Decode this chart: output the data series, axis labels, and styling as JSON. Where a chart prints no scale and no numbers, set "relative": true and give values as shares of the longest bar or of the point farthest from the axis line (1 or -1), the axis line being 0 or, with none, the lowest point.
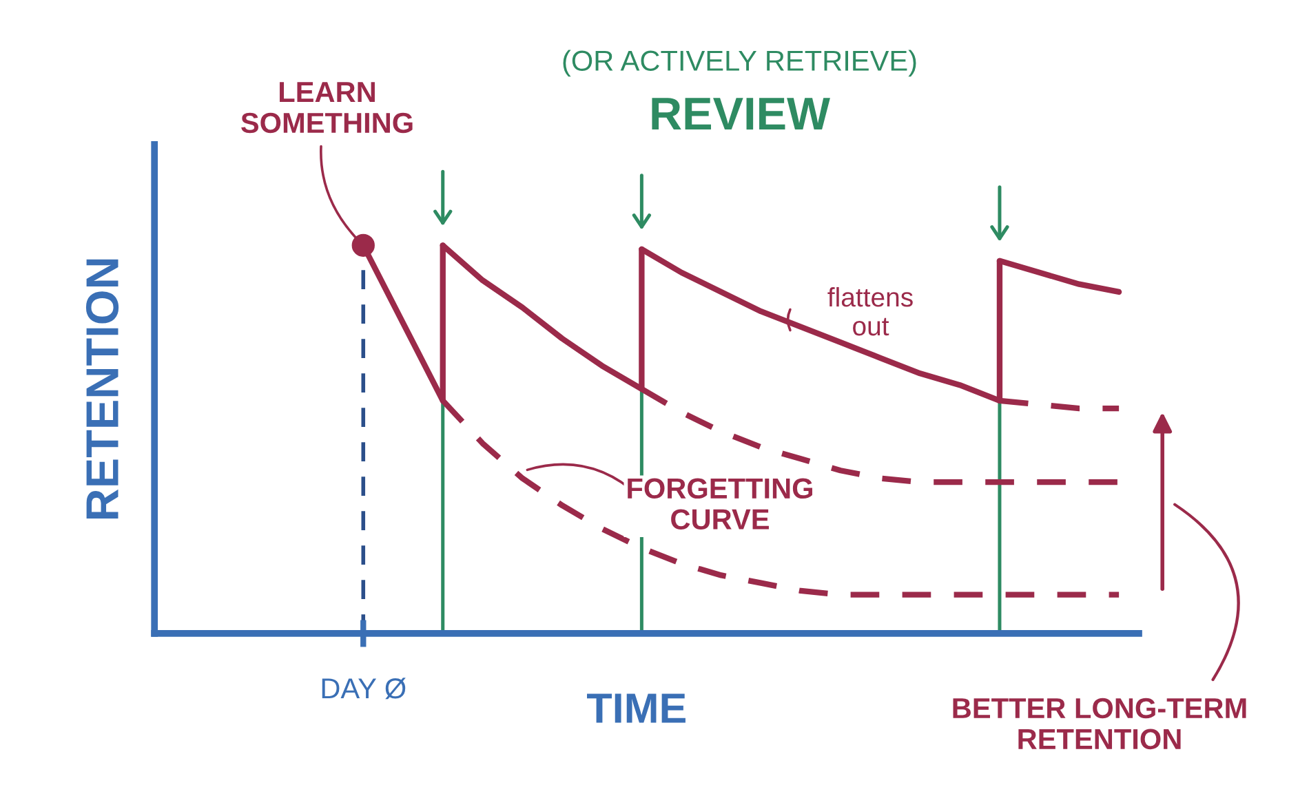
{
  "chart_data": {
    "type": "line",
    "relative": true,
    "title": "REVIEW",
    "subtitle": "(OR ACTIVELY RETRIEVE)",
    "xlabel": "TIME",
    "ylabel": "RETENTION",
    "categories": [
      null,
      null,
      null,
      null,
      null,
      null,
      null,
      null,
      null,
      null,
      null,
      null,
      null,
      null,
      null,
      null,
      null,
      null,
      null,
      null,
      null,
      null,
      null,
      null,
      null
    ],
    "series": [
      {
        "color": "#9b2a4a",
        "line_style": "solid",
        "values": [
          null,
          null,
          null,
          null,
          null,
          1.0,
          0.8,
          0.6,
          null,
          null,
          null,
          null,
          null,
          null,
          null,
          null,
          null,
          null,
          null,
          null,
          null,
          null,
          null,
          null,
          null
        ]
      },
      {
        "color": "#9b2a4a",
        "line_style": "solid",
        "values": [
          null,
          null,
          null,
          null,
          null,
          null,
          null,
          1.0,
          0.91,
          0.84,
          0.76,
          0.69,
          0.63,
          null,
          null,
          null,
          null,
          null,
          null,
          null,
          null,
          null,
          null,
          null,
          null
        ]
      },
      {
        "color": "#9b2a4a",
        "line_style": "solid",
        "values": [
          null,
          null,
          null,
          null,
          null,
          null,
          null,
          null,
          null,
          null,
          null,
          null,
          0.99,
          0.93,
          0.88,
          0.83,
          0.79,
          0.75,
          0.71,
          0.67,
          0.64,
          0.6,
          null,
          null,
          null
        ]
      },
      {
        "color": "#9b2a4a",
        "line_style": "solid",
        "values": [
          null,
          null,
          null,
          null,
          null,
          null,
          null,
          null,
          null,
          null,
          null,
          null,
          null,
          null,
          null,
          null,
          null,
          null,
          null,
          null,
          null,
          0.96,
          0.93,
          0.9,
          0.88
        ]
      },
      {
        "color": "#9b2a4a",
        "line_style": "dashed",
        "values": [
          null,
          null,
          null,
          null,
          null,
          null,
          null,
          0.6,
          0.49,
          0.4,
          0.33,
          0.27,
          0.22,
          0.18,
          0.15,
          0.13,
          0.11,
          0.1,
          0.1,
          0.1,
          0.1,
          0.1,
          0.1,
          0.1,
          0.1
        ]
      },
      {
        "color": "#9b2a4a",
        "line_style": "dashed",
        "values": [
          null,
          null,
          null,
          null,
          null,
          null,
          null,
          null,
          null,
          null,
          null,
          null,
          0.63,
          0.57,
          0.52,
          0.48,
          0.45,
          0.42,
          0.4,
          0.39,
          0.39,
          0.39,
          0.39,
          0.39,
          0.39
        ]
      },
      {
        "color": "#9b2a4a",
        "line_style": "dashed",
        "values": [
          null,
          null,
          null,
          null,
          null,
          null,
          null,
          null,
          null,
          null,
          null,
          null,
          null,
          null,
          null,
          null,
          null,
          null,
          null,
          null,
          null,
          0.6,
          0.59,
          0.58,
          0.58
        ]
      }
    ],
    "annotations": [
      "DAY Ø",
      "LEARN\nSOMETHING",
      "flattens\nout",
      "FORGETTING\nCURVE",
      "BETTER LONG-TERM\nRETENTION"
    ]
  }
}
